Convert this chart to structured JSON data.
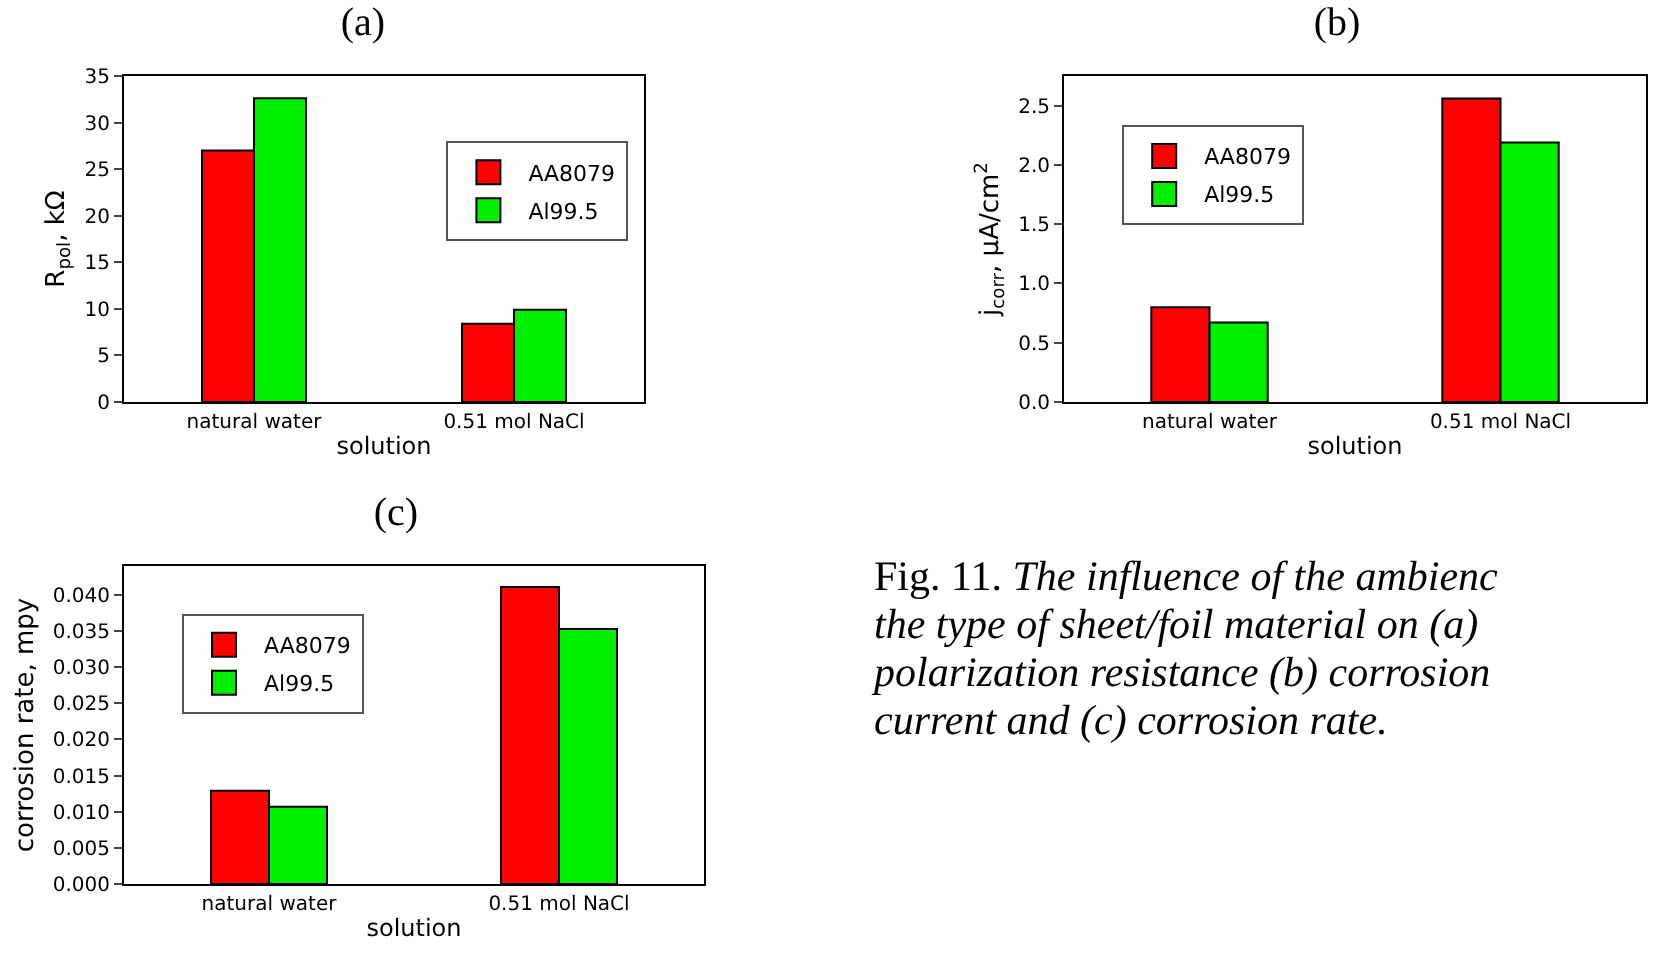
{
  "chart_data": [
    {
      "type": "bar",
      "title": "(a)",
      "xlabel": "solution",
      "ylabel": "R$_{pol}$, kΩ",
      "categories": [
        "natural water",
        "0.51 mol NaCl"
      ],
      "series": [
        {
          "name": "AA8079",
          "color": "#ff0000",
          "values": [
            27.0,
            8.4
          ]
        },
        {
          "name": "Al99.5",
          "color": "#00ee00",
          "values": [
            32.6,
            9.9
          ]
        }
      ],
      "ylim": [
        0,
        35
      ],
      "yticks": [
        0,
        5,
        10,
        15,
        20,
        25,
        30,
        35
      ],
      "grid": false,
      "legend": "top right"
    },
    {
      "type": "bar",
      "title": "(b)",
      "xlabel": "solution",
      "ylabel": "j$_{corr}$, μA/cm$^{2}$",
      "categories": [
        "natural water",
        "0.51 mol NaCl"
      ],
      "series": [
        {
          "name": "AA8079",
          "color": "#ff0000",
          "values": [
            0.8,
            2.56
          ]
        },
        {
          "name": "Al99.5",
          "color": "#00ee00",
          "values": [
            0.67,
            2.19
          ]
        }
      ],
      "ylim": [
        0,
        2.75
      ],
      "yticks": [
        {
          "value": 0,
          "label": "0.0"
        },
        {
          "value": 0.5,
          "label": "0.5"
        },
        {
          "value": 1,
          "label": "1.0"
        },
        {
          "value": 1.5,
          "label": "1.5"
        },
        {
          "value": 2,
          "label": "2.0"
        },
        {
          "value": 2.5,
          "label": "2.5"
        }
      ],
      "grid": false,
      "legend": "top left"
    },
    {
      "type": "bar",
      "title": "(c)",
      "xlabel": "solution",
      "ylabel": "corrosion rate, mpy",
      "categories": [
        "natural water",
        "0.51 mol NaCl"
      ],
      "series": [
        {
          "name": "AA8079",
          "color": "#ff0000",
          "values": [
            0.0129,
            0.0411
          ]
        },
        {
          "name": "Al99.5",
          "color": "#00ee00",
          "values": [
            0.0107,
            0.0353
          ]
        }
      ],
      "ylim": [
        0,
        0.044
      ],
      "yticks": [
        {
          "value": 0,
          "label": "0.000"
        },
        {
          "value": 0.005,
          "label": "0.005"
        },
        {
          "value": 0.01,
          "label": "0.010"
        },
        {
          "value": 0.015,
          "label": "0.015"
        },
        {
          "value": 0.02,
          "label": "0.020"
        },
        {
          "value": 0.025,
          "label": "0.025"
        },
        {
          "value": 0.03,
          "label": "0.030"
        },
        {
          "value": 0.035,
          "label": "0.035"
        },
        {
          "value": 0.04,
          "label": "0.040"
        }
      ],
      "grid": false,
      "legend": "top left"
    },
    {
      "type": "other",
      "annotations": [
        "Fig. 11.",
        "The influence of the ambienc",
        "the type of sheet/foil material on (a)",
        "polarization resistance (b) corrosion",
        "current and (c) corrosion rate."
      ]
    }
  ]
}
